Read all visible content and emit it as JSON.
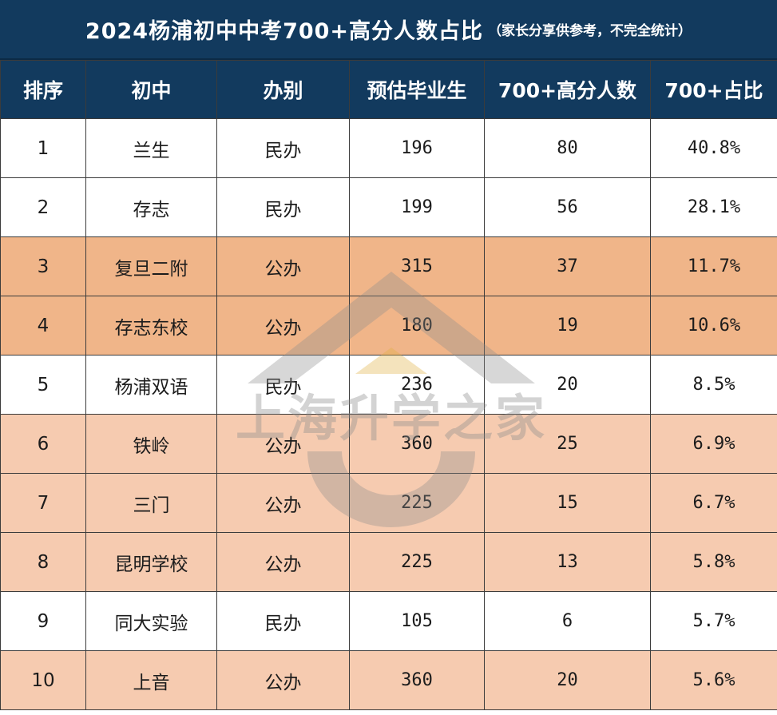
{
  "title": "2024杨浦初中中考700+高分人数占比",
  "title_note": "（家长分享供参考，不完全统计）",
  "headers": [
    "排序",
    "初中",
    "办别",
    "预估毕业生",
    "700+高分人数",
    "700+占比"
  ],
  "rows": [
    {
      "rank": "1",
      "school": "兰生",
      "type": "民办",
      "grads": "196",
      "high": "80",
      "pct": "40.8%",
      "shade": "white"
    },
    {
      "rank": "2",
      "school": "存志",
      "type": "民办",
      "grads": "199",
      "high": "56",
      "pct": "28.1%",
      "shade": "white"
    },
    {
      "rank": "3",
      "school": "复旦二附",
      "type": "公办",
      "grads": "315",
      "high": "37",
      "pct": "11.7%",
      "shade": "dark"
    },
    {
      "rank": "4",
      "school": "存志东校",
      "type": "公办",
      "grads": "180",
      "high": "19",
      "pct": "10.6%",
      "shade": "dark"
    },
    {
      "rank": "5",
      "school": "杨浦双语",
      "type": "民办",
      "grads": "236",
      "high": "20",
      "pct": "8.5%",
      "shade": "white"
    },
    {
      "rank": "6",
      "school": "铁岭",
      "type": "公办",
      "grads": "360",
      "high": "25",
      "pct": "6.9%",
      "shade": "light"
    },
    {
      "rank": "7",
      "school": "三门",
      "type": "公办",
      "grads": "225",
      "high": "15",
      "pct": "6.7%",
      "shade": "light"
    },
    {
      "rank": "8",
      "school": "昆明学校",
      "type": "公办",
      "grads": "225",
      "high": "13",
      "pct": "5.8%",
      "shade": "light"
    },
    {
      "rank": "9",
      "school": "同大实验",
      "type": "民办",
      "grads": "105",
      "high": "6",
      "pct": "5.7%",
      "shade": "white"
    },
    {
      "rank": "10",
      "school": "上音",
      "type": "公办",
      "grads": "360",
      "high": "20",
      "pct": "5.6%",
      "shade": "light"
    }
  ],
  "watermark": {
    "text": "上海升学之家",
    "icon": "house-logo-icon"
  },
  "colors": {
    "header": "#123a5e",
    "row_dark": "#f0b589",
    "row_light": "#f6cbb0",
    "row_white": "#ffffff"
  }
}
